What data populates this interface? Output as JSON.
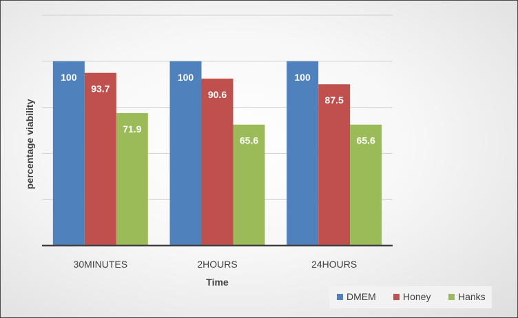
{
  "chart_data": {
    "type": "bar",
    "title": "",
    "xlabel": "Time",
    "ylabel": "percentage viability",
    "categories": [
      "30MINUTES",
      "2HOURS",
      "24HOURS"
    ],
    "series": [
      {
        "name": "DMEM",
        "color": "#4f81bd",
        "values": [
          100,
          100,
          100
        ]
      },
      {
        "name": "Honey",
        "color": "#c0504d",
        "values": [
          93.7,
          90.6,
          87.5
        ]
      },
      {
        "name": "Hanks",
        "color": "#9bbb59",
        "values": [
          71.9,
          65.6,
          65.6
        ]
      }
    ],
    "ylim": [
      0,
      125
    ],
    "y_tick_step": 25,
    "y_tick_labels_shown": false,
    "grid": true,
    "legend_position": "bottom-right",
    "data_labels": true
  }
}
